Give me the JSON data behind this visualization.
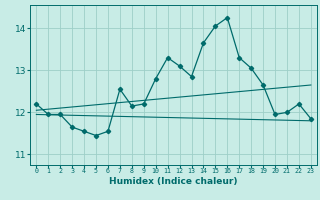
{
  "title": "",
  "xlabel": "Humidex (Indice chaleur)",
  "ylabel": "",
  "bg_color": "#c8ece6",
  "grid_color": "#9dcfc8",
  "line_color": "#006b6b",
  "xlim": [
    -0.5,
    23.5
  ],
  "ylim": [
    10.75,
    14.55
  ],
  "yticks": [
    11,
    12,
    13,
    14
  ],
  "xtick_labels": [
    "0",
    "1",
    "2",
    "3",
    "4",
    "5",
    "6",
    "7",
    "8",
    "9",
    "10",
    "11",
    "12",
    "13",
    "14",
    "15",
    "16",
    "17",
    "18",
    "19",
    "20",
    "21",
    "22",
    "23"
  ],
  "main_x": [
    0,
    1,
    2,
    3,
    4,
    5,
    6,
    7,
    8,
    9,
    10,
    11,
    12,
    13,
    14,
    15,
    16,
    17,
    18,
    19,
    20,
    21,
    22,
    23
  ],
  "main_y": [
    12.2,
    11.95,
    11.95,
    11.65,
    11.55,
    11.45,
    11.55,
    12.55,
    12.15,
    12.2,
    12.8,
    13.3,
    13.1,
    12.85,
    13.65,
    14.05,
    14.25,
    13.3,
    13.05,
    12.65,
    11.95,
    12.0,
    12.2,
    11.85
  ],
  "upper_line_x": [
    0,
    23
  ],
  "upper_line_y": [
    12.05,
    12.65
  ],
  "lower_line_x": [
    0,
    23
  ],
  "lower_line_y": [
    11.95,
    11.8
  ],
  "font_color": "#006b6b"
}
